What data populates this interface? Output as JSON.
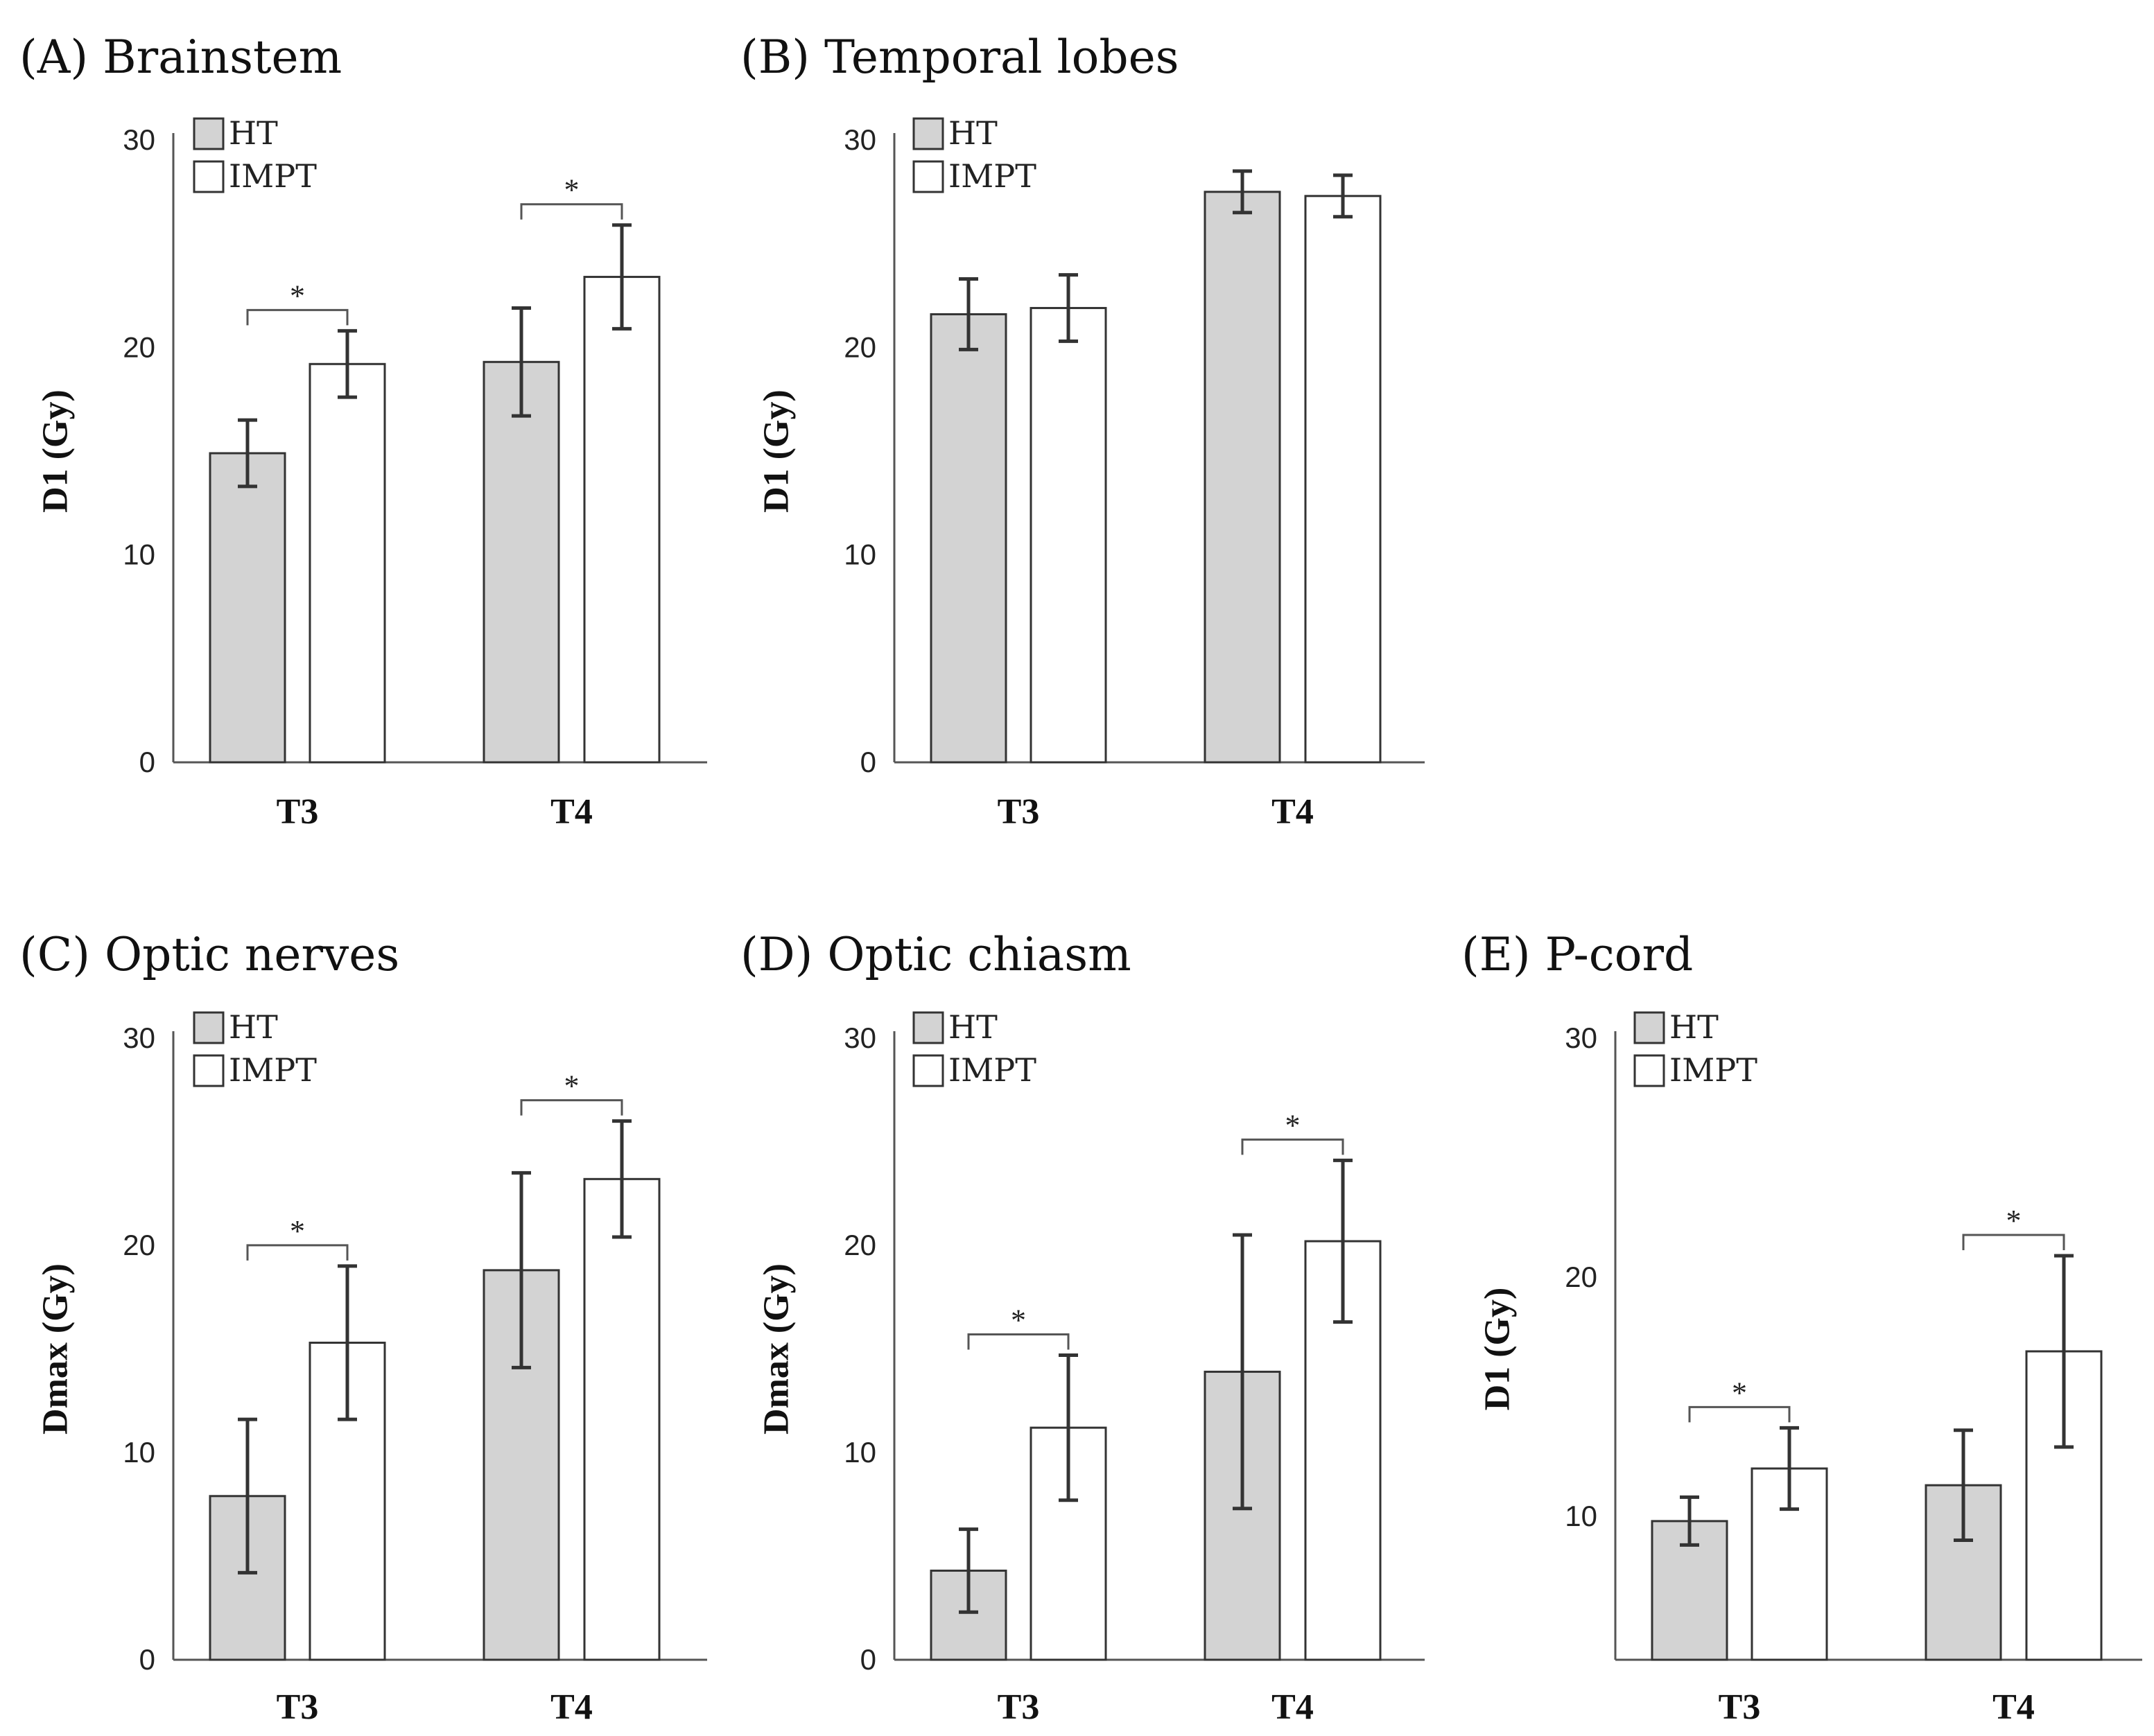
{
  "chart_data": [
    {
      "type": "bar",
      "panel": "(A)",
      "title": "(A) Brainstem",
      "ylabel": "D1 (Gy)",
      "xlabel": "",
      "ylim": [
        0,
        30
      ],
      "yticks": [
        0,
        10,
        20,
        30
      ],
      "categories": [
        "T3",
        "T4"
      ],
      "legend": [
        "HT",
        "IMPT"
      ],
      "series": [
        {
          "name": "HT",
          "color": "#d3d3d3",
          "values": [
            14.9,
            19.3
          ],
          "error": [
            1.6,
            2.6
          ]
        },
        {
          "name": "IMPT",
          "color": "#ffffff",
          "values": [
            19.2,
            23.4
          ],
          "error": [
            1.6,
            2.5
          ]
        }
      ],
      "significance": [
        {
          "category": "T3",
          "label": "*"
        },
        {
          "category": "T4",
          "label": "*"
        }
      ]
    },
    {
      "type": "bar",
      "panel": "(B)",
      "title": "(B) Temporal lobes",
      "ylabel": "D1 (Gy)",
      "xlabel": "",
      "ylim": [
        0,
        30
      ],
      "yticks": [
        0,
        10,
        20,
        30
      ],
      "categories": [
        "T3",
        "T4"
      ],
      "legend": [
        "HT",
        "IMPT"
      ],
      "series": [
        {
          "name": "HT",
          "color": "#d3d3d3",
          "values": [
            21.6,
            27.5
          ],
          "error": [
            1.7,
            1.0
          ]
        },
        {
          "name": "IMPT",
          "color": "#ffffff",
          "values": [
            21.9,
            27.3
          ],
          "error": [
            1.6,
            1.0
          ]
        }
      ],
      "significance": []
    },
    {
      "type": "bar",
      "panel": "(C)",
      "title": "(C) Optic nerves",
      "ylabel": "Dmax (Gy)",
      "xlabel": "",
      "ylim": [
        0,
        30
      ],
      "yticks": [
        0,
        10,
        20,
        30
      ],
      "categories": [
        "T3",
        "T4"
      ],
      "legend": [
        "HT",
        "IMPT"
      ],
      "series": [
        {
          "name": "HT",
          "color": "#d3d3d3",
          "values": [
            7.9,
            18.8
          ],
          "error": [
            3.7,
            4.7
          ]
        },
        {
          "name": "IMPT",
          "color": "#ffffff",
          "values": [
            15.3,
            23.2
          ],
          "error": [
            3.7,
            2.8
          ]
        }
      ],
      "significance": [
        {
          "category": "T3",
          "label": "*"
        },
        {
          "category": "T4",
          "label": "*"
        }
      ]
    },
    {
      "type": "bar",
      "panel": "(D)",
      "title": "(D) Optic chiasm",
      "ylabel": "Dmax (Gy)",
      "xlabel": "",
      "ylim": [
        0,
        30
      ],
      "yticks": [
        0,
        10,
        20,
        30
      ],
      "categories": [
        "T3",
        "T4"
      ],
      "legend": [
        "HT",
        "IMPT"
      ],
      "series": [
        {
          "name": "HT",
          "color": "#d3d3d3",
          "values": [
            4.3,
            13.9
          ],
          "error": [
            2.0,
            6.6
          ]
        },
        {
          "name": "IMPT",
          "color": "#ffffff",
          "values": [
            11.2,
            20.2
          ],
          "error": [
            3.5,
            3.9
          ]
        }
      ],
      "significance": [
        {
          "category": "T3",
          "label": "*"
        },
        {
          "category": "T4",
          "label": "*"
        }
      ]
    },
    {
      "type": "bar",
      "panel": "(E)",
      "title": "(E) P-cord",
      "ylabel": "D1 (Gy)",
      "xlabel": "",
      "ylim": [
        4,
        30
      ],
      "yticks": [
        10,
        20,
        30
      ],
      "categories": [
        "T3",
        "T4"
      ],
      "legend": [
        "HT",
        "IMPT"
      ],
      "series": [
        {
          "name": "HT",
          "color": "#d3d3d3",
          "values": [
            9.8,
            11.3
          ],
          "error": [
            1.0,
            2.3
          ]
        },
        {
          "name": "IMPT",
          "color": "#ffffff",
          "values": [
            12.0,
            16.9
          ],
          "error": [
            1.7,
            4.0
          ]
        }
      ],
      "significance": [
        {
          "category": "T3",
          "label": "*"
        },
        {
          "category": "T4",
          "label": "*"
        }
      ]
    }
  ]
}
